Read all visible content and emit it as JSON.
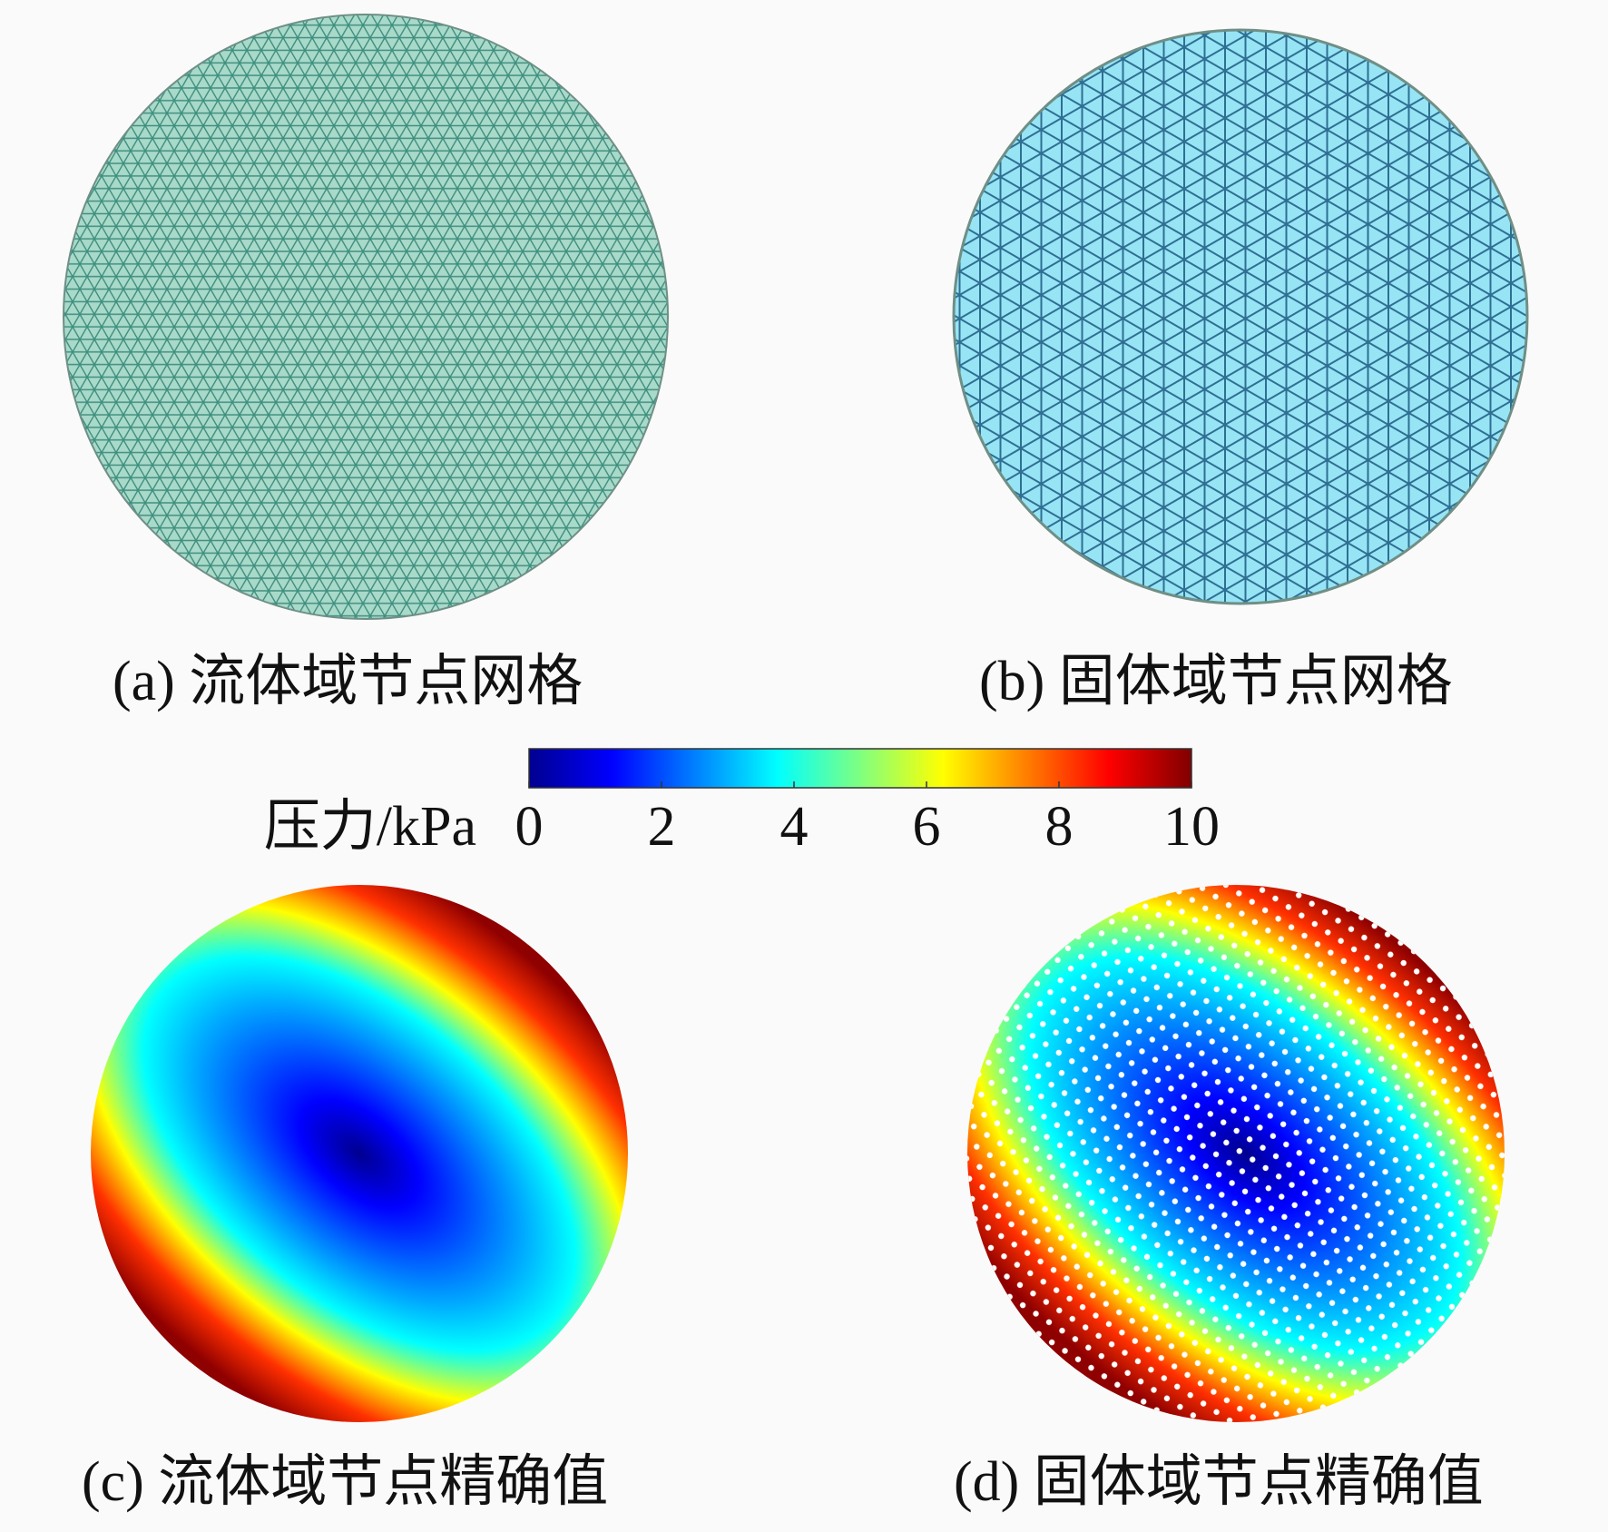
{
  "panels": [
    {
      "caption": "(a) 流体域节点网格"
    },
    {
      "caption": "(b) 固体域节点网格"
    },
    {
      "caption": "(c) 流体域节点精确值"
    },
    {
      "caption": "(d) 固体域节点精确值"
    }
  ],
  "colorbar": {
    "label": "压力/kPa",
    "lim": [
      0,
      10
    ],
    "ticks": [
      0,
      2,
      4,
      6,
      8,
      10
    ]
  }
}
